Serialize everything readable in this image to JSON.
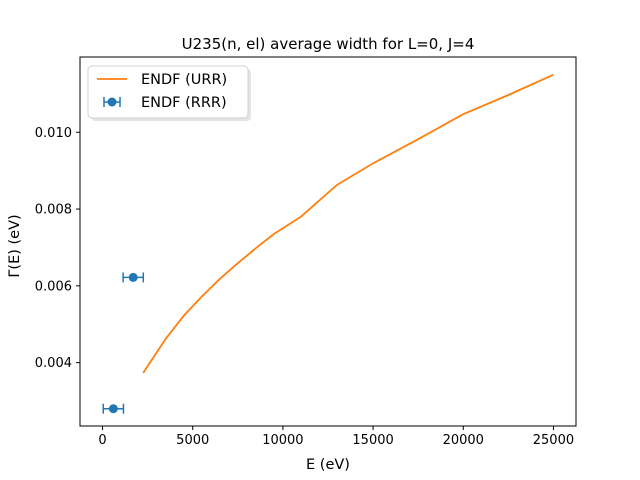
{
  "chart_data": {
    "type": "line",
    "title": "U235(n, el) average width for L=0, J=4",
    "xlabel": "E (eV)",
    "ylabel": "Γ̄(E) (eV)",
    "xlim": [
      -1250,
      26250
    ],
    "ylim": [
      0.00235,
      0.01196
    ],
    "x_ticks": [
      0,
      5000,
      10000,
      15000,
      20000,
      25000
    ],
    "x_tick_labels": [
      "0",
      "5000",
      "10000",
      "15000",
      "20000",
      "25000"
    ],
    "y_ticks": [
      0.004,
      0.006,
      0.008,
      0.01
    ],
    "y_tick_labels": [
      "0.004",
      "0.006",
      "0.008",
      "0.010"
    ],
    "grid": false,
    "legend_position": "top-left",
    "series": [
      {
        "name": "ENDF (URR)",
        "kind": "line",
        "color": "#ff7f0e",
        "x": [
          2250,
          3500,
          4500,
          5500,
          6500,
          7500,
          8500,
          9500,
          11000,
          13000,
          15000,
          17500,
          20000,
          22500,
          25000
        ],
        "y": [
          0.00373,
          0.00462,
          0.00522,
          0.00572,
          0.00618,
          0.00659,
          0.00698,
          0.00735,
          0.0078,
          0.00863,
          0.00919,
          0.00982,
          0.01047,
          0.01097,
          0.0115
        ]
      },
      {
        "name": "ENDF (RRR)",
        "kind": "errorbar",
        "color": "#1f77b4",
        "x": [
          600,
          1700
        ],
        "xerr": [
          560,
          560
        ],
        "y": [
          0.0028,
          0.00622
        ]
      }
    ]
  }
}
